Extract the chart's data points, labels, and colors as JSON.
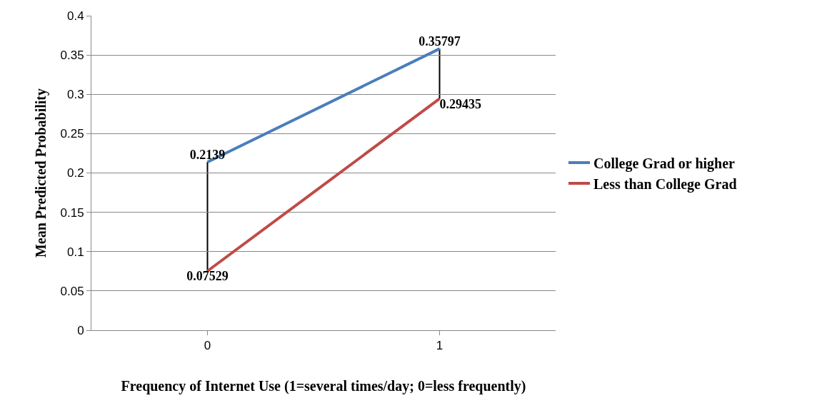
{
  "chart_data": {
    "type": "line",
    "xlabel": "Frequency of Internet Use (1=several times/day; 0=less frequently)",
    "ylabel": "Mean Predicted Probability",
    "categories": [
      "0",
      "1"
    ],
    "series": [
      {
        "name": "College Grad or higher",
        "color": "#4a7ebb",
        "values": [
          0.2139,
          0.35797
        ]
      },
      {
        "name": "Less than College Grad",
        "color": "#be4b48",
        "values": [
          0.07529,
          0.29435
        ]
      }
    ],
    "ylim": [
      0,
      0.4
    ],
    "yticks": [
      0,
      0.05,
      0.1,
      0.15,
      0.2,
      0.25,
      0.3,
      0.35,
      0.4
    ],
    "grid": "y",
    "legend": "right",
    "marker": "none",
    "line_style": "solid",
    "data_labels": true
  }
}
